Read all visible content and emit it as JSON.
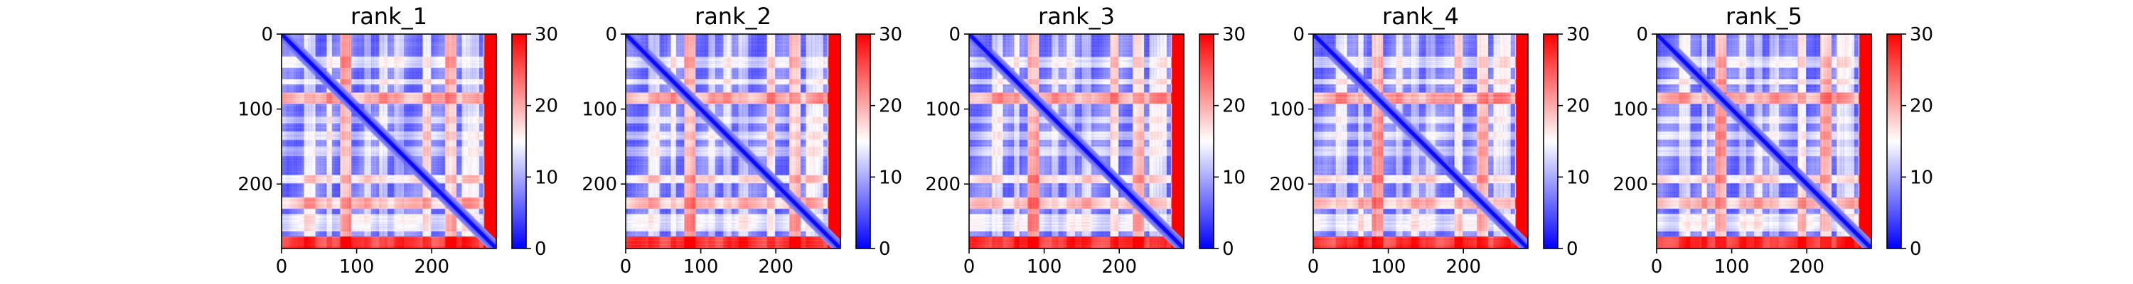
{
  "chart_data": [
    {
      "type": "heatmap",
      "title": "rank_1",
      "xlabel": "",
      "ylabel": "",
      "xlim": [
        0,
        286
      ],
      "ylim": [
        286,
        0
      ],
      "x_ticks": [
        "0",
        "100",
        "200"
      ],
      "y_ticks": [
        "0",
        "100",
        "200"
      ],
      "colorbar": {
        "range": [
          0,
          30
        ],
        "ticks": [
          "0",
          "10",
          "20",
          "30"
        ],
        "colormap": "bwr"
      },
      "grid": false
    },
    {
      "type": "heatmap",
      "title": "rank_2",
      "xlabel": "",
      "ylabel": "",
      "xlim": [
        0,
        286
      ],
      "ylim": [
        286,
        0
      ],
      "x_ticks": [
        "0",
        "100",
        "200"
      ],
      "y_ticks": [
        "0",
        "100",
        "200"
      ],
      "colorbar": {
        "range": [
          0,
          30
        ],
        "ticks": [
          "0",
          "10",
          "20",
          "30"
        ],
        "colormap": "bwr"
      },
      "grid": false
    },
    {
      "type": "heatmap",
      "title": "rank_3",
      "xlabel": "",
      "ylabel": "",
      "xlim": [
        0,
        286
      ],
      "ylim": [
        286,
        0
      ],
      "x_ticks": [
        "0",
        "100",
        "200"
      ],
      "y_ticks": [
        "0",
        "100",
        "200"
      ],
      "colorbar": {
        "range": [
          0,
          30
        ],
        "ticks": [
          "0",
          "10",
          "20",
          "30"
        ],
        "colormap": "bwr"
      },
      "grid": false
    },
    {
      "type": "heatmap",
      "title": "rank_4",
      "xlabel": "",
      "ylabel": "",
      "xlim": [
        0,
        286
      ],
      "ylim": [
        286,
        0
      ],
      "x_ticks": [
        "0",
        "100",
        "200"
      ],
      "y_ticks": [
        "0",
        "100",
        "200"
      ],
      "colorbar": {
        "range": [
          0,
          30
        ],
        "ticks": [
          "0",
          "10",
          "20",
          "30"
        ],
        "colormap": "bwr"
      },
      "grid": false
    },
    {
      "type": "heatmap",
      "title": "rank_5",
      "xlabel": "",
      "ylabel": "",
      "xlim": [
        0,
        286
      ],
      "ylim": [
        286,
        0
      ],
      "x_ticks": [
        "0",
        "100",
        "200"
      ],
      "y_ticks": [
        "0",
        "100",
        "200"
      ],
      "colorbar": {
        "range": [
          0,
          30
        ],
        "ticks": [
          "0",
          "10",
          "20",
          "30"
        ],
        "colormap": "bwr"
      },
      "grid": false
    }
  ],
  "colors": {
    "low": "#0000ff",
    "mid": "#ffffff",
    "high": "#ff0000",
    "text": "#000000"
  }
}
